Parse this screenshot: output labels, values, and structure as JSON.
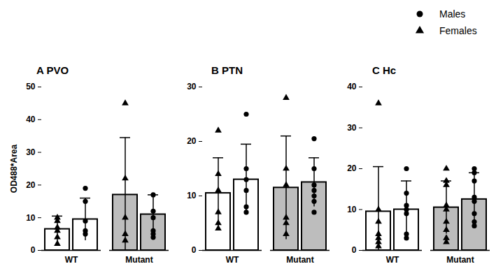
{
  "chart_data": [
    {
      "type": "bar",
      "title": "A PVO",
      "ylabel": "OD488*Area",
      "categories": [
        "WT",
        "Mutant"
      ],
      "colors": [
        "#ffffff",
        "#bdbdbd"
      ],
      "ylim": [
        0,
        50
      ],
      "yticks": [
        0,
        10,
        20,
        30,
        40,
        50
      ],
      "legend": "top-right",
      "series": [
        {
          "name": "Females",
          "marker": "triangle",
          "values": [
            6.5,
            17
          ],
          "sd": [
            4,
            17.5
          ],
          "points": [
            [
              2,
              4,
              6,
              7,
              9,
              10
            ],
            [
              45,
              22,
              10,
              5,
              3
            ]
          ]
        },
        {
          "name": "Males",
          "marker": "circle",
          "values": [
            9.5,
            11
          ],
          "sd": [
            6.5,
            6
          ],
          "points": [
            [
              5,
              6,
              9,
              15,
              19
            ],
            [
              17,
              12,
              10,
              6,
              5,
              4
            ]
          ]
        }
      ]
    },
    {
      "type": "bar",
      "title": "B PTN",
      "categories": [
        "WT",
        "Mutant"
      ],
      "colors": [
        "#ffffff",
        "#bdbdbd"
      ],
      "ylim": [
        0,
        30
      ],
      "yticks": [
        0,
        10,
        20,
        30
      ],
      "series": [
        {
          "name": "Females",
          "marker": "triangle",
          "values": [
            10.5,
            11.5
          ],
          "sd": [
            6.5,
            9.5
          ],
          "points": [
            [
              22,
              14,
              11,
              7,
              5,
              4
            ],
            [
              28,
              15,
              12,
              6,
              5,
              3
            ]
          ]
        },
        {
          "name": "Males",
          "marker": "circle",
          "values": [
            13,
            12.5
          ],
          "sd": [
            6.5,
            4.5
          ],
          "points": [
            [
              25,
              15,
              13,
              11,
              8,
              7
            ],
            [
              20.5,
              15,
              12,
              11,
              10,
              9,
              7
            ]
          ]
        }
      ]
    },
    {
      "type": "bar",
      "title": "C Hc",
      "categories": [
        "WT",
        "Mutant"
      ],
      "colors": [
        "#ffffff",
        "#bdbdbd"
      ],
      "ylim": [
        0,
        40
      ],
      "yticks": [
        0,
        10,
        20,
        30,
        40
      ],
      "series": [
        {
          "name": "Females",
          "marker": "triangle",
          "values": [
            9.5,
            10.5
          ],
          "sd": [
            11,
            6.5
          ],
          "points": [
            [
              36,
              10,
              7,
              4,
              3,
              2,
              1
            ],
            [
              20,
              17,
              16,
              11,
              10,
              7,
              5,
              3,
              2
            ]
          ]
        },
        {
          "name": "Males",
          "marker": "circle",
          "values": [
            10,
            12.5
          ],
          "sd": [
            7,
            6.5
          ],
          "points": [
            [
              20,
              14,
              11,
              10,
              9,
              4,
              3
            ],
            [
              20,
              19,
              17,
              13,
              12,
              9,
              7,
              6
            ]
          ]
        }
      ]
    }
  ]
}
